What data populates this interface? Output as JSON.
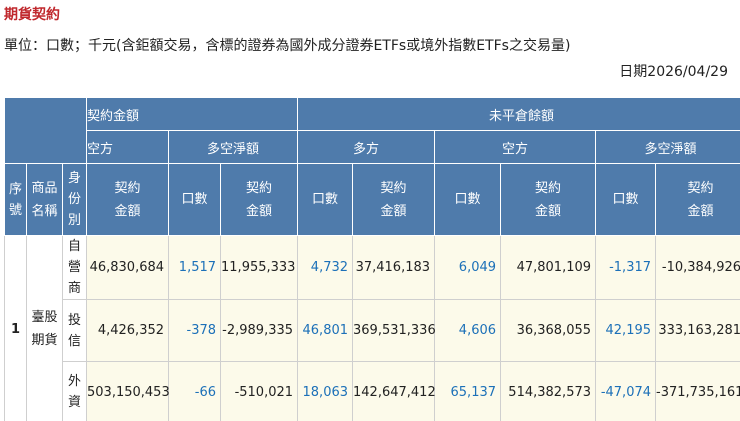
{
  "header": {
    "title": "期貨契約",
    "unit": "單位：口數；千元(含鉅額交易，含標的證券為國外成分證券ETFs或境外指數ETFs之交易量)",
    "date": "日期2026/04/29"
  },
  "table": {
    "group_headers": [
      "契約金額",
      "未平倉餘額"
    ],
    "sub_headers": [
      "空方",
      "多空淨額",
      "多方",
      "空方",
      "多空淨額"
    ],
    "columns": [
      "序號",
      "商品名稱",
      "身份別",
      "契約金額",
      "口數",
      "契約金額",
      "口數",
      "契約金額",
      "口數",
      "契約金額",
      "口數",
      "契約金額"
    ],
    "index": "1",
    "product": "臺股期貨",
    "rows": [
      [
        "自營商",
        "46,830,684",
        "1,517",
        "11,955,333",
        "4,732",
        "37,416,183",
        "6,049",
        "47,801,109",
        "-1,317",
        "-10,384,926"
      ],
      [
        "投信",
        "4,426,352",
        "-378",
        "-2,989,335",
        "46,801",
        "369,531,336",
        "4,606",
        "36,368,055",
        "42,195",
        "333,163,281"
      ],
      [
        "外資",
        "503,150,453",
        "-66",
        "-510,021",
        "18,063",
        "142,647,412",
        "65,137",
        "514,382,573",
        "-47,074",
        "-371,735,161"
      ]
    ]
  }
}
